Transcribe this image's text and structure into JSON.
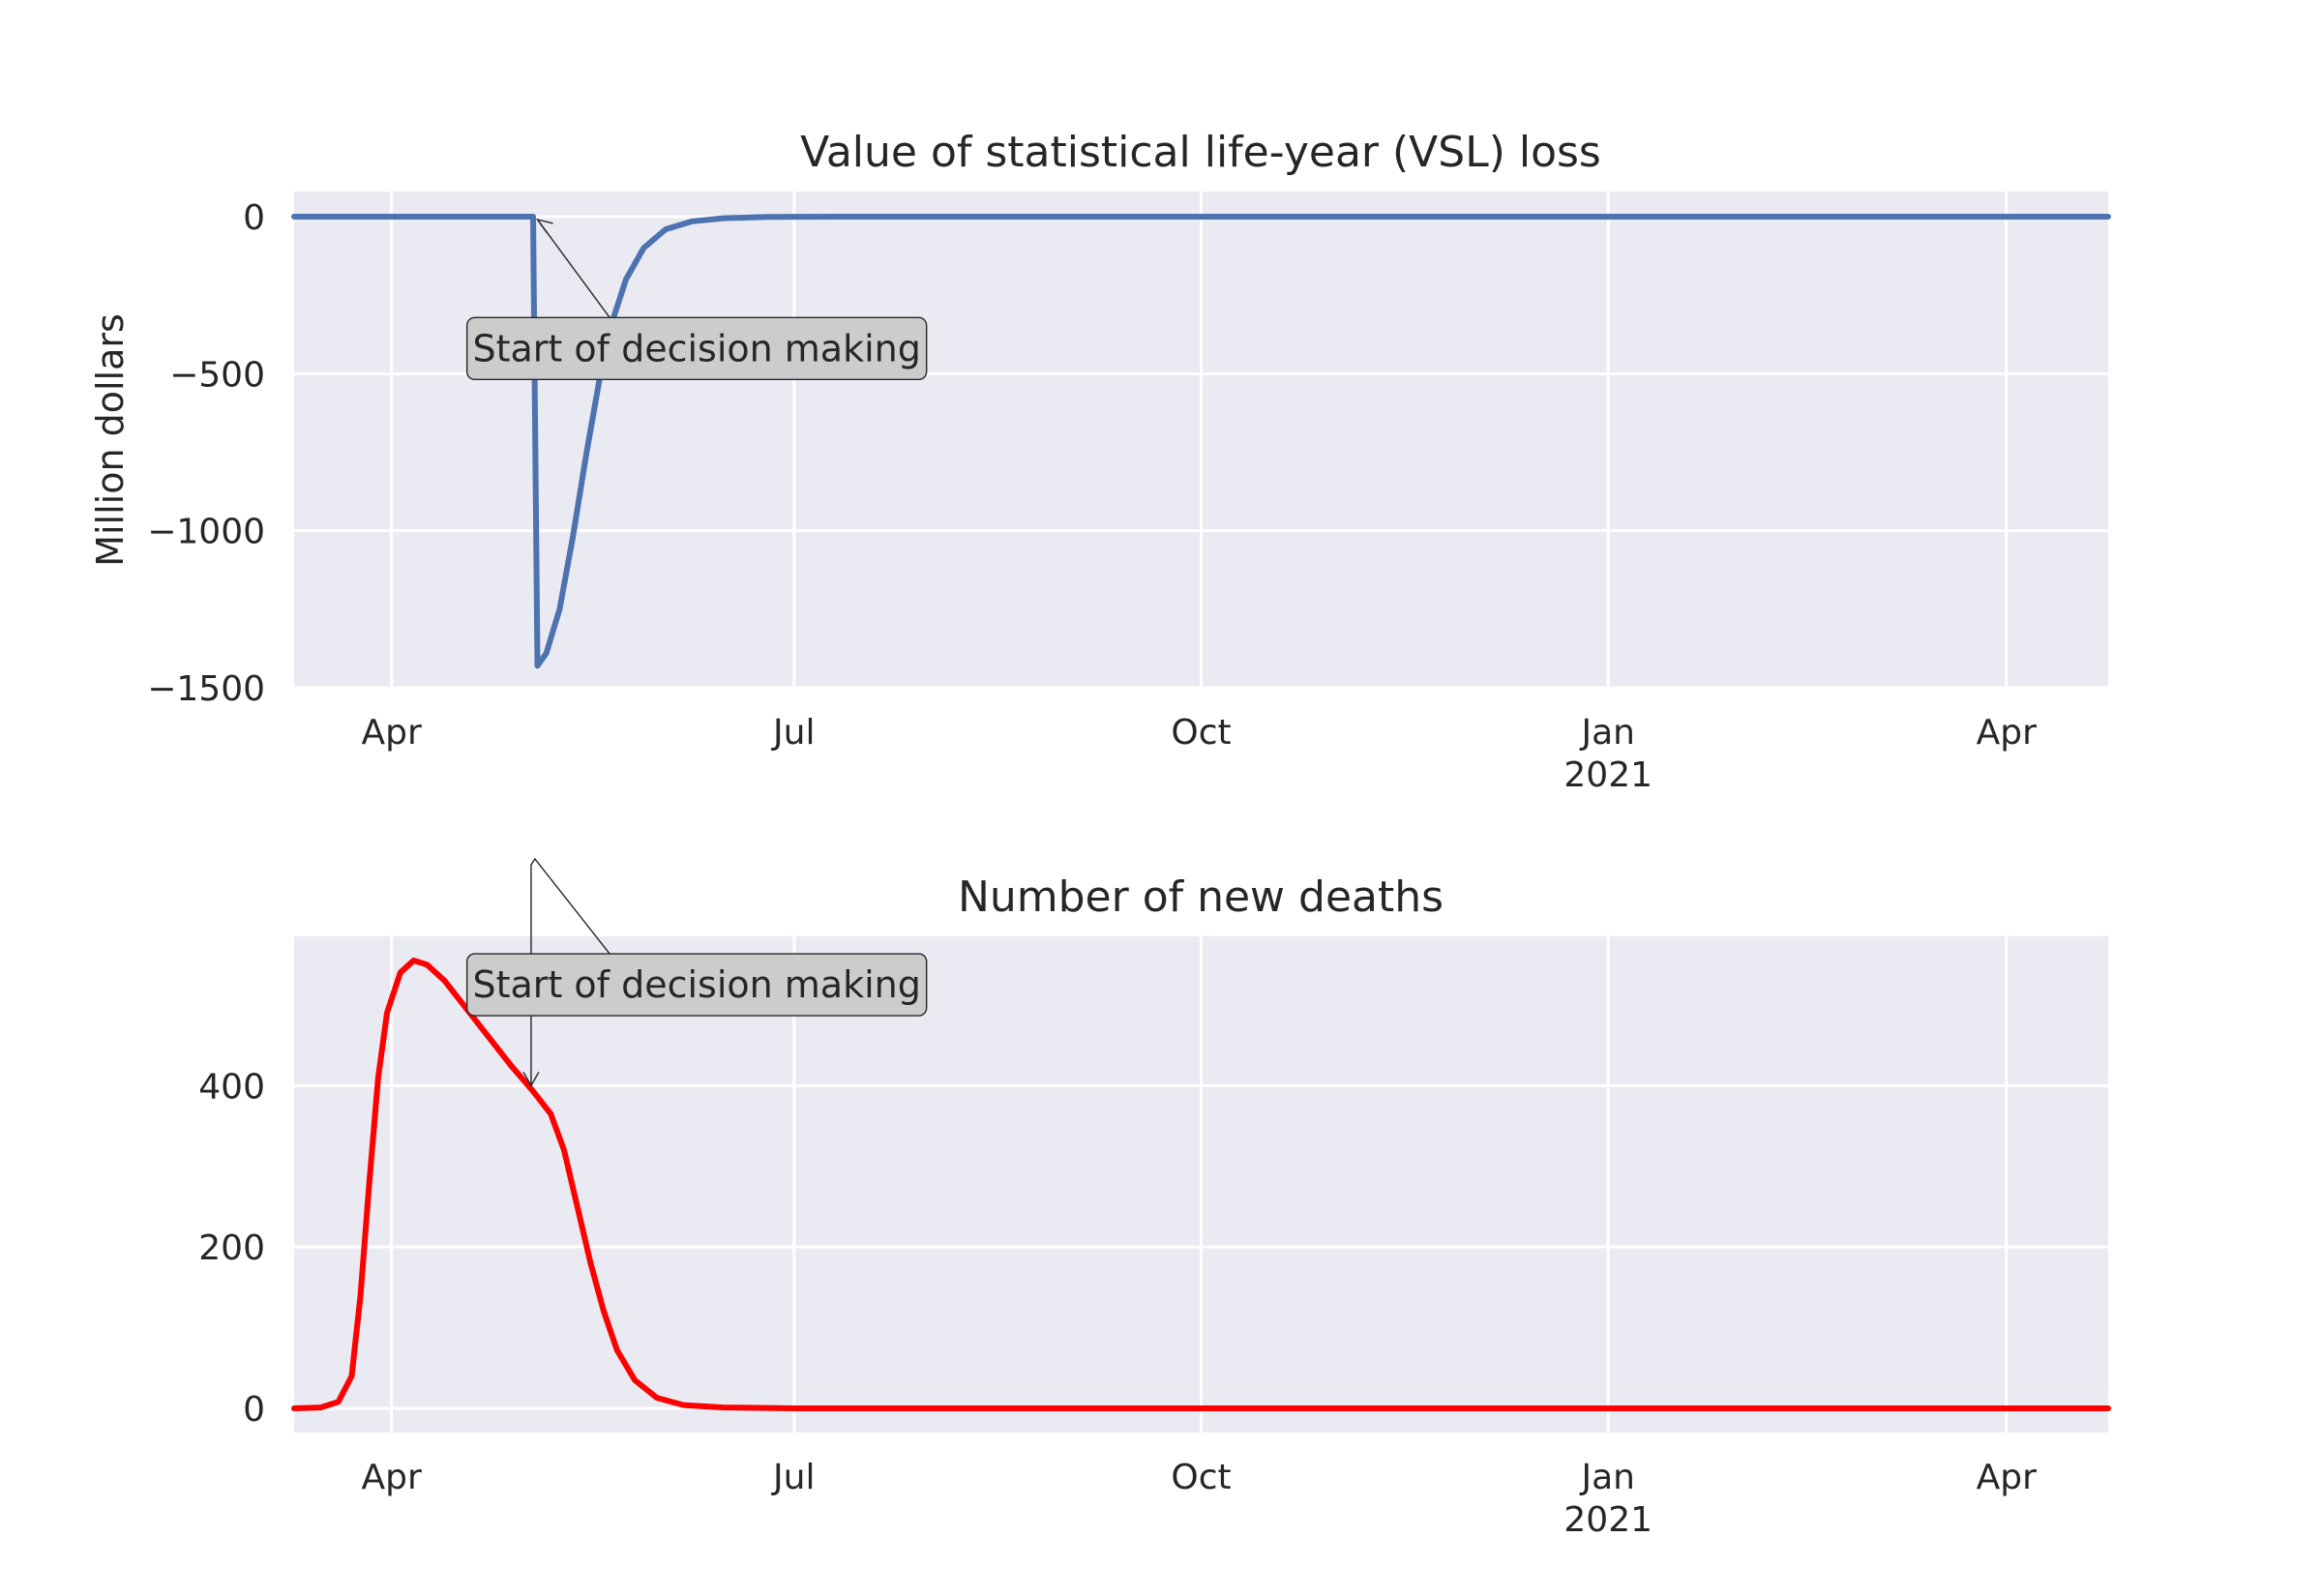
{
  "figure": {
    "background": "#ffffff",
    "axes_facecolor": "#eaeaf2",
    "grid_color": "#ffffff"
  },
  "chart_data": [
    {
      "type": "line",
      "title": "Value of statistical life-year (VSL) loss",
      "xlabel": "",
      "ylabel": "Million dollars",
      "x_axis": "date",
      "xlim": [
        "2020-03-10",
        "2021-04-24"
      ],
      "ylim": [
        -1500,
        80
      ],
      "grid": true,
      "xticks": [
        {
          "date": "2020-04-01",
          "label": "Apr",
          "sub": ""
        },
        {
          "date": "2020-07-01",
          "label": "Jul",
          "sub": ""
        },
        {
          "date": "2020-10-01",
          "label": "Oct",
          "sub": ""
        },
        {
          "date": "2021-01-01",
          "label": "Jan",
          "sub": "2021"
        },
        {
          "date": "2021-04-01",
          "label": "Apr",
          "sub": ""
        }
      ],
      "yticks": [
        {
          "value": 0,
          "label": "0"
        },
        {
          "value": -500,
          "label": "−500"
        },
        {
          "value": -1000,
          "label": "−1000"
        },
        {
          "value": -1500,
          "label": "−1500"
        }
      ],
      "series": [
        {
          "color": "#4c72b0",
          "points": [
            [
              "2020-03-10",
              0
            ],
            [
              "2020-05-03",
              0
            ],
            [
              "2020-05-04",
              -1430
            ],
            [
              "2020-05-06",
              -1390
            ],
            [
              "2020-05-09",
              -1250
            ],
            [
              "2020-05-12",
              -1020
            ],
            [
              "2020-05-15",
              -760
            ],
            [
              "2020-05-18",
              -520
            ],
            [
              "2020-05-21",
              -330
            ],
            [
              "2020-05-24",
              -200
            ],
            [
              "2020-05-28",
              -100
            ],
            [
              "2020-06-02",
              -40
            ],
            [
              "2020-06-08",
              -15
            ],
            [
              "2020-06-15",
              -5
            ],
            [
              "2020-06-25",
              -1
            ],
            [
              "2020-07-10",
              0
            ],
            [
              "2021-04-24",
              0
            ]
          ]
        }
      ],
      "annotation": {
        "text": "Start of decision making",
        "xy": [
          "2020-05-04",
          0
        ],
        "xytext": [
          "2020-06-09",
          -420
        ]
      }
    },
    {
      "type": "line",
      "title": "Number of new deaths",
      "xlabel": "",
      "ylabel": "",
      "x_axis": "date",
      "xlim": [
        "2020-03-10",
        "2021-04-24"
      ],
      "ylim": [
        -30,
        585
      ],
      "grid": true,
      "xticks": [
        {
          "date": "2020-04-01",
          "label": "Apr",
          "sub": ""
        },
        {
          "date": "2020-07-01",
          "label": "Jul",
          "sub": ""
        },
        {
          "date": "2020-10-01",
          "label": "Oct",
          "sub": ""
        },
        {
          "date": "2021-01-01",
          "label": "Jan",
          "sub": "2021"
        },
        {
          "date": "2021-04-01",
          "label": "Apr",
          "sub": ""
        }
      ],
      "yticks": [
        {
          "value": 0,
          "label": "0"
        },
        {
          "value": 200,
          "label": "200"
        },
        {
          "value": 400,
          "label": "400"
        }
      ],
      "series": [
        {
          "color": "#ff0000",
          "points": [
            [
              "2020-03-10",
              0
            ],
            [
              "2020-03-16",
              1
            ],
            [
              "2020-03-20",
              8
            ],
            [
              "2020-03-23",
              40
            ],
            [
              "2020-03-25",
              140
            ],
            [
              "2020-03-27",
              280
            ],
            [
              "2020-03-29",
              410
            ],
            [
              "2020-03-31",
              490
            ],
            [
              "2020-04-03",
              540
            ],
            [
              "2020-04-06",
              555
            ],
            [
              "2020-04-09",
              550
            ],
            [
              "2020-04-13",
              530
            ],
            [
              "2020-04-18",
              495
            ],
            [
              "2020-04-23",
              460
            ],
            [
              "2020-04-28",
              425
            ],
            [
              "2020-05-03",
              393
            ],
            [
              "2020-05-07",
              365
            ],
            [
              "2020-05-10",
              320
            ],
            [
              "2020-05-13",
              250
            ],
            [
              "2020-05-16",
              180
            ],
            [
              "2020-05-19",
              120
            ],
            [
              "2020-05-22",
              72
            ],
            [
              "2020-05-26",
              35
            ],
            [
              "2020-05-31",
              13
            ],
            [
              "2020-06-06",
              4
            ],
            [
              "2020-06-15",
              1
            ],
            [
              "2020-07-01",
              0
            ],
            [
              "2021-04-24",
              0
            ]
          ]
        }
      ],
      "annotation": {
        "text": "Start of decision making",
        "xy": [
          "2020-05-03",
          400
        ],
        "xytext": [
          "2020-06-09",
          525
        ]
      }
    }
  ]
}
